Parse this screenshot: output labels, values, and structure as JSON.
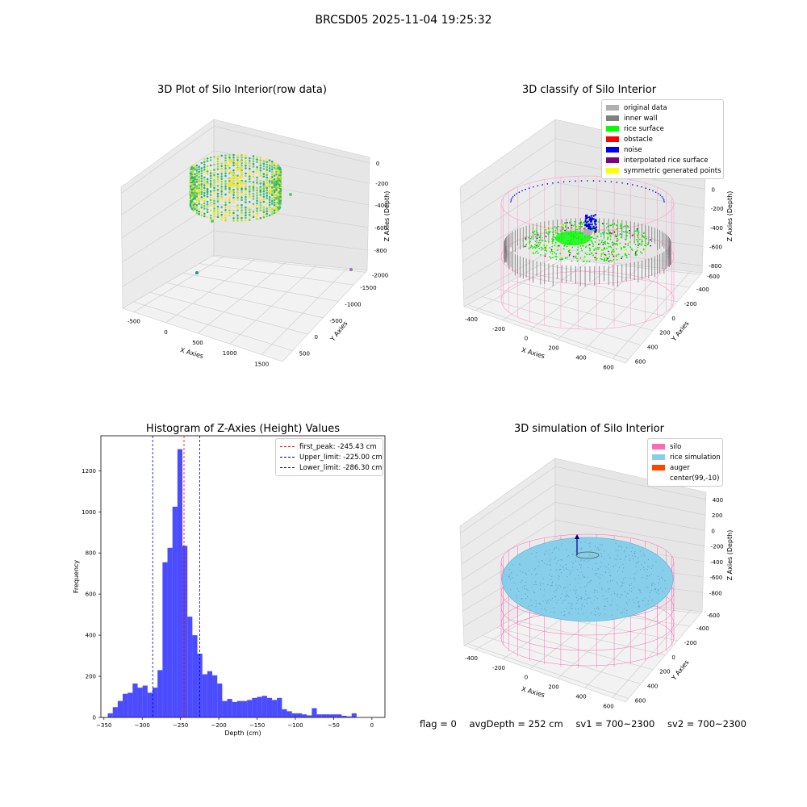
{
  "suptitle": "BRCSD05 2025-11-04 19:25:32",
  "footer": {
    "flag": "flag = 0",
    "avg_depth": "avgDepth = 252 cm",
    "sv1": "sv1 = 700~2300",
    "sv2": "sv2 = 700~2300"
  },
  "chart_data": [
    {
      "type": "scatter",
      "title": "3D Plot of Silo Interior(row data)",
      "xlabel": "X Axies",
      "ylabel": "Y Axies",
      "zlabel": "Z Axies (Depth)",
      "x_ticks": [
        "-500",
        "0",
        "500",
        "1000",
        "1500"
      ],
      "y_ticks": [
        "500",
        "0",
        "-500",
        "-1000",
        "-1500",
        "-2000"
      ],
      "z_ticks": [
        "0",
        "-200",
        "-400",
        "-600",
        "-800"
      ],
      "colormap": "viridis"
    },
    {
      "type": "scatter",
      "title": "3D classify of Silo Interior",
      "xlabel": "X Axies",
      "ylabel": "Y Axies",
      "zlabel": "Z Axies (Depth)",
      "x_ticks": [
        "-400",
        "-200",
        "0",
        "200",
        "400",
        "600"
      ],
      "y_ticks": [
        "600",
        "400",
        "200",
        "0",
        "-200",
        "-400",
        "-600"
      ],
      "z_ticks": [
        "200",
        "0",
        "-200",
        "-400",
        "-600",
        "-800"
      ],
      "z_top_tick": "00",
      "legend": [
        {
          "label": "original data",
          "color": "#b0b0b0"
        },
        {
          "label": "inner wall",
          "color": "#808080"
        },
        {
          "label": "rice surface",
          "color": "#00ff00"
        },
        {
          "label": "obstacle",
          "color": "#ff0000"
        },
        {
          "label": "noise",
          "color": "#0000ee"
        },
        {
          "label": "interpolated rice surface",
          "color": "#800080"
        },
        {
          "label": "symmetric generated points",
          "color": "#ffff00"
        }
      ]
    },
    {
      "type": "bar",
      "title": "Histogram of Z-Axies (Height) Values",
      "xlabel": "Depth (cm)",
      "ylabel": "Frequency",
      "xlim": [
        -354,
        17
      ],
      "ylim": [
        0,
        1370
      ],
      "x_ticks": [
        -350,
        -300,
        -250,
        -200,
        -150,
        -100,
        -50,
        0
      ],
      "y_ticks": [
        0,
        200,
        400,
        600,
        800,
        1000,
        1200
      ],
      "bin_start": -345,
      "bin_width": 6.5,
      "values": [
        20,
        50,
        80,
        115,
        120,
        165,
        145,
        155,
        120,
        145,
        230,
        755,
        825,
        1025,
        1305,
        835,
        490,
        400,
        310,
        210,
        225,
        205,
        165,
        80,
        90,
        75,
        80,
        80,
        85,
        95,
        100,
        105,
        95,
        85,
        95,
        40,
        30,
        20,
        20,
        15,
        10,
        45,
        15,
        15,
        15,
        15,
        15,
        8,
        5,
        20
      ],
      "bar_color": "#0000ff",
      "lines": [
        {
          "label": "first_peak: -245.43 cm",
          "x": -245.43,
          "color": "#ff0000"
        },
        {
          "label": "Upper_limit: -225.00 cm",
          "x": -225.0,
          "color": "#0000cc"
        },
        {
          "label": "Lower_limit: -286.30 cm",
          "x": -286.3,
          "color": "#0000cc"
        }
      ]
    },
    {
      "type": "scatter",
      "title": "3D simulation of Silo Interior",
      "xlabel": "X Axies",
      "ylabel": "Y Axies",
      "zlabel": "Z Axies (Depth)",
      "x_ticks": [
        "-400",
        "-200",
        "0",
        "200",
        "400",
        "600"
      ],
      "y_ticks": [
        "600",
        "400",
        "200",
        "0",
        "-200",
        "-400",
        "-600"
      ],
      "z_ticks": [
        "400",
        "200",
        "0",
        "-200",
        "-400",
        "-600",
        "-800"
      ],
      "legend": [
        {
          "label": "silo",
          "color": "#ff69b4"
        },
        {
          "label": "rice simulation",
          "color": "#87ceeb"
        },
        {
          "label": "auger",
          "color": "#ff4500"
        },
        {
          "label": "center(99,-10)",
          "color": ""
        }
      ]
    }
  ]
}
